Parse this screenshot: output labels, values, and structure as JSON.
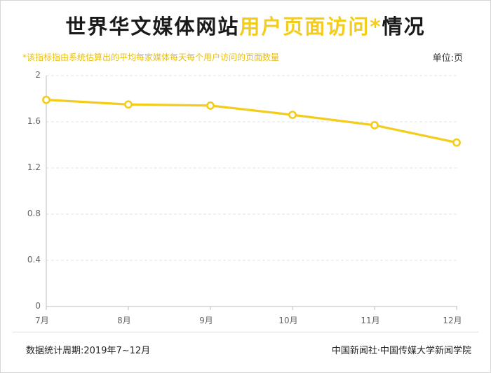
{
  "header": {
    "title_dark_1": "世界华文媒体网站",
    "title_accent": "用户页面访问*",
    "title_dark_2": "情况",
    "note": "*该指标指由系统估算出的平均每家媒体每天每个用户访问的页面数量",
    "unit": "单位:页"
  },
  "footer": {
    "period": "数据统计周期:2019年7~12月",
    "source": "中国新闻社·中国传媒大学新闻学院"
  },
  "colors": {
    "accent": "#f3cc1c",
    "title": "#1a1a1a",
    "grid": "#e3e3e3",
    "axis": "#bdbdbd"
  },
  "chart_data": {
    "type": "line",
    "categories": [
      "7月",
      "8月",
      "9月",
      "10月",
      "11月",
      "12月"
    ],
    "series": [
      {
        "values": [
          1.79,
          1.75,
          1.74,
          1.66,
          1.57,
          1.42
        ]
      }
    ],
    "ylim": [
      0,
      2
    ],
    "yticks": [
      0,
      0.4,
      0.8,
      1.2,
      1.6,
      2
    ],
    "ytick_labels": [
      "0",
      "0.4",
      "0.8",
      "1.2",
      "1.6",
      "2"
    ],
    "grid": true,
    "xlabel": "",
    "ylabel": ""
  }
}
